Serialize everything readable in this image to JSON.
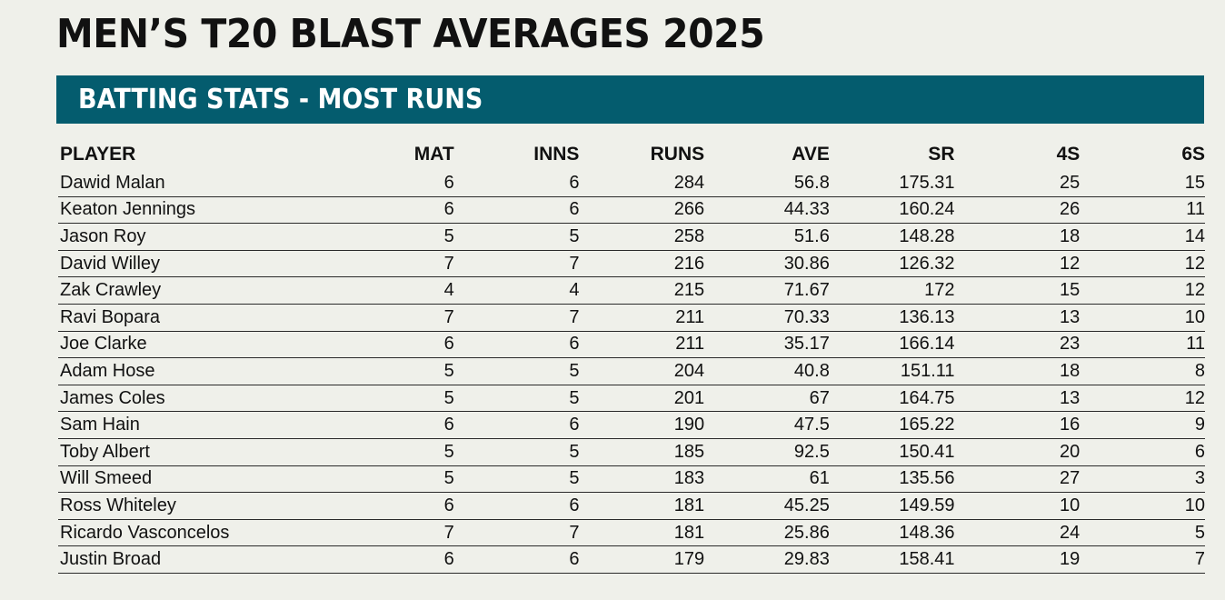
{
  "title": "MEN’S T20 BLAST AVERAGES 2025",
  "section_title": "BATTING STATS - MOST RUNS",
  "table": {
    "headers": {
      "player": "PLAYER",
      "mat": "MAT",
      "inns": "INNS",
      "runs": "RUNS",
      "ave": "AVE",
      "sr": "SR",
      "fours": "4S",
      "sixes": "6S"
    },
    "rows": [
      {
        "player": "Dawid Malan",
        "mat": "6",
        "inns": "6",
        "runs": "284",
        "ave": "56.8",
        "sr": "175.31",
        "fours": "25",
        "sixes": "15"
      },
      {
        "player": "Keaton Jennings",
        "mat": "6",
        "inns": "6",
        "runs": "266",
        "ave": "44.33",
        "sr": "160.24",
        "fours": "26",
        "sixes": "11"
      },
      {
        "player": "Jason Roy",
        "mat": "5",
        "inns": "5",
        "runs": "258",
        "ave": "51.6",
        "sr": "148.28",
        "fours": "18",
        "sixes": "14"
      },
      {
        "player": "David Willey",
        "mat": "7",
        "inns": "7",
        "runs": "216",
        "ave": "30.86",
        "sr": "126.32",
        "fours": "12",
        "sixes": "12"
      },
      {
        "player": "Zak Crawley",
        "mat": "4",
        "inns": "4",
        "runs": "215",
        "ave": "71.67",
        "sr": "172",
        "fours": "15",
        "sixes": "12"
      },
      {
        "player": "Ravi Bopara",
        "mat": "7",
        "inns": "7",
        "runs": "211",
        "ave": "70.33",
        "sr": "136.13",
        "fours": "13",
        "sixes": "10"
      },
      {
        "player": "Joe Clarke",
        "mat": "6",
        "inns": "6",
        "runs": "211",
        "ave": "35.17",
        "sr": "166.14",
        "fours": "23",
        "sixes": "11"
      },
      {
        "player": "Adam Hose",
        "mat": "5",
        "inns": "5",
        "runs": "204",
        "ave": "40.8",
        "sr": "151.11",
        "fours": "18",
        "sixes": "8"
      },
      {
        "player": "James Coles",
        "mat": "5",
        "inns": "5",
        "runs": "201",
        "ave": "67",
        "sr": "164.75",
        "fours": "13",
        "sixes": "12"
      },
      {
        "player": "Sam Hain",
        "mat": "6",
        "inns": "6",
        "runs": "190",
        "ave": "47.5",
        "sr": "165.22",
        "fours": "16",
        "sixes": "9"
      },
      {
        "player": "Toby Albert",
        "mat": "5",
        "inns": "5",
        "runs": "185",
        "ave": "92.5",
        "sr": "150.41",
        "fours": "20",
        "sixes": "6"
      },
      {
        "player": "Will Smeed",
        "mat": "5",
        "inns": "5",
        "runs": "183",
        "ave": "61",
        "sr": "135.56",
        "fours": "27",
        "sixes": "3"
      },
      {
        "player": "Ross Whiteley",
        "mat": "6",
        "inns": "6",
        "runs": "181",
        "ave": "45.25",
        "sr": "149.59",
        "fours": "10",
        "sixes": "10"
      },
      {
        "player": "Ricardo Vasconcelos",
        "mat": "7",
        "inns": "7",
        "runs": "181",
        "ave": "25.86",
        "sr": "148.36",
        "fours": "24",
        "sixes": "5"
      },
      {
        "player": "Justin Broad",
        "mat": "6",
        "inns": "6",
        "runs": "179",
        "ave": "29.83",
        "sr": "158.41",
        "fours": "19",
        "sixes": "7"
      }
    ]
  },
  "colors": {
    "background": "#eff0ea",
    "section_bar": "#045c6e",
    "section_text": "#ffffff",
    "text": "#111111"
  }
}
